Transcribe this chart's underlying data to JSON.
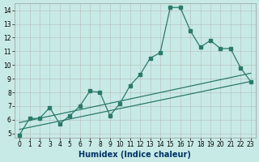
{
  "xlabel": "Humidex (Indice chaleur)",
  "xlim_min": -0.5,
  "xlim_max": 23.5,
  "ylim_min": 4.7,
  "ylim_max": 14.5,
  "xticks": [
    0,
    1,
    2,
    3,
    4,
    5,
    6,
    7,
    8,
    9,
    10,
    11,
    12,
    13,
    14,
    15,
    16,
    17,
    18,
    19,
    20,
    21,
    22,
    23
  ],
  "yticks": [
    5,
    6,
    7,
    8,
    9,
    10,
    11,
    12,
    13,
    14
  ],
  "background_color": "#c8eae6",
  "grid_color": "#aaaaaa",
  "line_color": "#2a7a6a",
  "series1_x": [
    0,
    1,
    2,
    3,
    4,
    5,
    6,
    7,
    8,
    9,
    10,
    11,
    12,
    13,
    14,
    15,
    16,
    17,
    18,
    19,
    20,
    21,
    22,
    23
  ],
  "series1_y": [
    4.9,
    6.1,
    6.1,
    6.9,
    5.7,
    6.3,
    7.0,
    8.1,
    8.0,
    6.3,
    7.2,
    8.5,
    9.3,
    10.5,
    10.9,
    14.2,
    14.2,
    12.5,
    11.3,
    11.8,
    11.2,
    11.2,
    9.8,
    8.8
  ],
  "series2_x": [
    0,
    23
  ],
  "series2_y": [
    5.3,
    8.8
  ],
  "series3_x": [
    0,
    23
  ],
  "series3_y": [
    5.8,
    9.4
  ],
  "xlabel_color": "#003366",
  "xlabel_fontsize": 7,
  "tick_fontsize": 5.5
}
